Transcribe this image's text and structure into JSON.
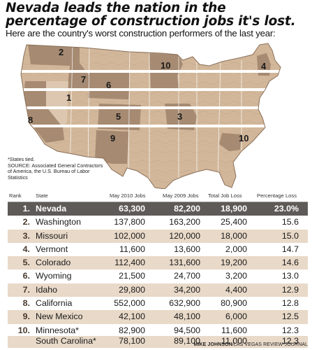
{
  "header": {
    "title": "Nevada leads the nation in the percentage of construction jobs it's lost.",
    "subtitle": "Here are the country's worst construction performers of the last year:"
  },
  "notes": {
    "states_tied": "*States tied.",
    "source_line1": "SOURCE: Associated General Contractors",
    "source_line2": "of America, the U.S. Bureau of Labor",
    "source_line3": "Statistics"
  },
  "credit": {
    "author": "MIKE JOHNSON",
    "outlet": "/LAS VEGAS REVIEW-JOURNAL"
  },
  "map": {
    "colors": {
      "land": "#d2b79a",
      "dark_state": "#a68a72",
      "light_state": "#ddc7b1",
      "label": "#1a1a1a",
      "border": "#ffffff"
    },
    "labels": [
      {
        "rank": "1",
        "state": "Nevada"
      },
      {
        "rank": "2",
        "state": "Washington"
      },
      {
        "rank": "3",
        "state": "Missouri"
      },
      {
        "rank": "4",
        "state": "Vermont"
      },
      {
        "rank": "5",
        "state": "Colorado"
      },
      {
        "rank": "6",
        "state": "Wyoming"
      },
      {
        "rank": "7",
        "state": "Idaho"
      },
      {
        "rank": "8",
        "state": "California"
      },
      {
        "rank": "9",
        "state": "New Mexico"
      },
      {
        "rank": "10",
        "state": "Minnesota"
      },
      {
        "rank": "10",
        "state": "South Carolina"
      }
    ]
  },
  "chart_data": {
    "type": "table",
    "columns": [
      "Rank",
      "State",
      "May 2010 Jobs",
      "May 2009 Jobs",
      "Total Job Loss",
      "Percentage Loss"
    ],
    "rows": [
      {
        "rank": "1.",
        "state": "Nevada",
        "may2010": "63,300",
        "may2009": "82,200",
        "loss": "18,900",
        "pct": "23.0%"
      },
      {
        "rank": "2.",
        "state": "Washington",
        "may2010": "137,800",
        "may2009": "163,200",
        "loss": "25,400",
        "pct": "15.6"
      },
      {
        "rank": "3.",
        "state": "Missouri",
        "may2010": "102,000",
        "may2009": "120,000",
        "loss": "18,000",
        "pct": "15.0"
      },
      {
        "rank": "4.",
        "state": "Vermont",
        "may2010": "11,600",
        "may2009": "13,600",
        "loss": "2,000",
        "pct": "14.7"
      },
      {
        "rank": "5.",
        "state": "Colorado",
        "may2010": "112,400",
        "may2009": "131,600",
        "loss": "19,200",
        "pct": "14.6"
      },
      {
        "rank": "6.",
        "state": "Wyoming",
        "may2010": "21,500",
        "may2009": "24,700",
        "loss": "3,200",
        "pct": "13.0"
      },
      {
        "rank": "7.",
        "state": "Idaho",
        "may2010": "29,800",
        "may2009": "34,200",
        "loss": "4,400",
        "pct": "12.9"
      },
      {
        "rank": "8.",
        "state": "California",
        "may2010": "552,000",
        "may2009": "632,900",
        "loss": "80,900",
        "pct": "12.8"
      },
      {
        "rank": "9.",
        "state": "New Mexico",
        "may2010": "42,100",
        "may2009": "48,100",
        "loss": "6,000",
        "pct": "12.5"
      },
      {
        "rank": "10.",
        "state": "Minnesota*",
        "may2010": "82,900",
        "may2009": "94,500",
        "loss": "11,600",
        "pct": "12.3"
      },
      {
        "rank": "",
        "state": "South Carolina*",
        "may2010": "78,100",
        "may2009": "89,100",
        "loss": "11,000",
        "pct": "12.3"
      }
    ]
  }
}
